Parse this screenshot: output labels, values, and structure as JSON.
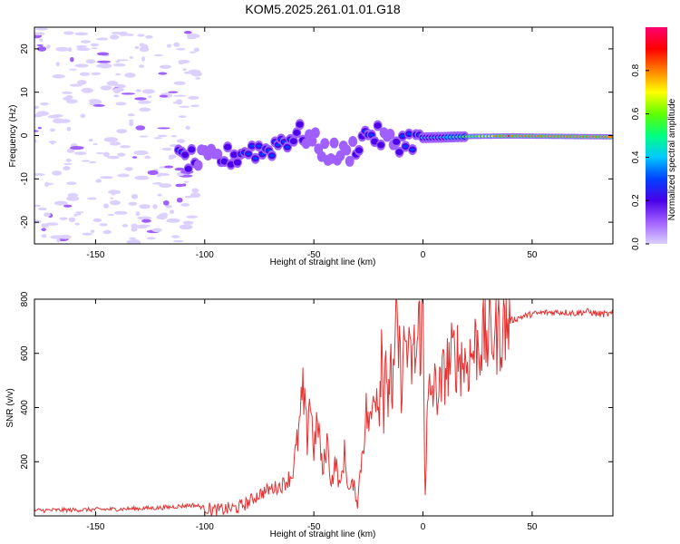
{
  "figure_title": "KOM5.2025.261.01.01.G18",
  "chart_data": [
    {
      "type": "heatmap",
      "title": "KOM5.2025.261.01.01.G18",
      "xlabel": "Height of straight line (km)",
      "ylabel": "Frequency (Hz)",
      "xlim": [
        -178,
        87
      ],
      "ylim": [
        -25,
        25
      ],
      "xticks": [
        -150,
        -100,
        -50,
        0,
        50
      ],
      "yticks": [
        -20,
        -10,
        0,
        10,
        20
      ],
      "colorbar": {
        "label": "Normalized spectral amplitude",
        "range": [
          0,
          1
        ],
        "ticks": [
          "0.0",
          "0.2",
          "0.4",
          "0.6",
          "0.8"
        ],
        "colors": [
          "#dcd0ff",
          "#a060ff",
          "#4a00e8",
          "#0040ff",
          "#00c8ff",
          "#00ff80",
          "#60ff00",
          "#ffff00",
          "#ff8000",
          "#ff0000",
          "#ff0070"
        ]
      },
      "ridge": [
        {
          "x": -112,
          "freq": -5.5,
          "amp": 0.3
        },
        {
          "x": -100,
          "freq": -5.8,
          "amp": 0.22
        },
        {
          "x": -85,
          "freq": -4.5,
          "amp": 0.28
        },
        {
          "x": -80,
          "freq": -3.2,
          "amp": 0.3
        },
        {
          "x": -72,
          "freq": -3.5,
          "amp": 0.3
        },
        {
          "x": -65,
          "freq": -1.2,
          "amp": 0.32
        },
        {
          "x": -55,
          "freq": 0.5,
          "amp": 0.25
        },
        {
          "x": -45,
          "freq": -3.5,
          "amp": 0.22
        },
        {
          "x": -35,
          "freq": -4.5,
          "amp": 0.22
        },
        {
          "x": -25,
          "freq": 0.8,
          "amp": 0.3
        },
        {
          "x": -15,
          "freq": -1.5,
          "amp": 0.22
        },
        {
          "x": -8,
          "freq": -1.2,
          "amp": 0.3
        },
        {
          "x": 0,
          "freq": -0.5,
          "amp": 0.35
        },
        {
          "x": 10,
          "freq": -0.4,
          "amp": 0.4
        },
        {
          "x": 22,
          "freq": -0.2,
          "amp": 0.6
        },
        {
          "x": 40,
          "freq": -0.1,
          "amp": 0.85
        },
        {
          "x": 65,
          "freq": -0.2,
          "amp": 0.75
        },
        {
          "x": 87,
          "freq": -0.3,
          "amp": 0.85
        }
      ]
    },
    {
      "type": "line",
      "xlabel": "Height of straight line (km)",
      "ylabel": "SNR (v/v)",
      "xlim": [
        -178,
        87
      ],
      "ylim": [
        0,
        800
      ],
      "xticks": [
        -150,
        -100,
        -50,
        0,
        50
      ],
      "yticks": [
        200,
        400,
        600,
        800
      ],
      "series": [
        {
          "name": "SNR",
          "color": "#e53030",
          "x": [
            -178,
            -160,
            -140,
            -120,
            -105,
            -95,
            -90,
            -85,
            -80,
            -75,
            -70,
            -65,
            -60,
            -57,
            -55,
            -53,
            -52,
            -50,
            -48,
            -46,
            -44,
            -42,
            -40,
            -38,
            -36,
            -34,
            -32,
            -30,
            -28,
            -26,
            -24,
            -22,
            -20,
            -19,
            -18,
            -17,
            -16,
            -15,
            -14,
            -12,
            -10,
            -8,
            -6,
            -4,
            -3,
            -2,
            -1,
            0,
            0.5,
            1,
            1.5,
            2,
            3,
            5,
            8,
            10,
            15,
            20,
            25,
            30,
            35,
            40,
            45,
            50,
            55,
            60,
            65,
            70,
            75,
            80,
            87
          ],
          "y": [
            20,
            22,
            25,
            30,
            40,
            20,
            25,
            30,
            50,
            80,
            100,
            110,
            150,
            300,
            450,
            280,
            460,
            250,
            350,
            150,
            280,
            120,
            200,
            100,
            230,
            90,
            120,
            50,
            230,
            380,
            330,
            500,
            420,
            660,
            400,
            680,
            300,
            640,
            420,
            700,
            500,
            660,
            550,
            600,
            580,
            700,
            650,
            800,
            380,
            90,
            220,
            380,
            450,
            470,
            460,
            540,
            600,
            560,
            640,
            660,
            690,
            720,
            735,
            745,
            750,
            752,
            752,
            748,
            755,
            745,
            745
          ]
        }
      ]
    }
  ]
}
